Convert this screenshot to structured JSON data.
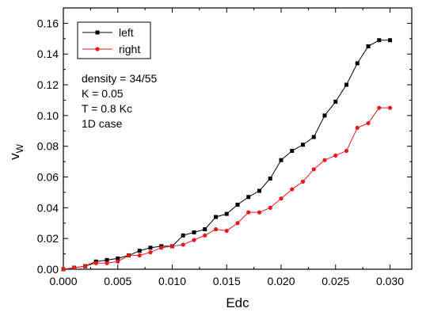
{
  "chart_data": {
    "type": "line",
    "title": "",
    "xlabel": "Edc",
    "ylabel": "v",
    "ylabel_subscript": "W",
    "xlim": [
      0.0,
      0.032
    ],
    "ylim": [
      0.0,
      0.17
    ],
    "xticks": [
      0.0,
      0.005,
      0.01,
      0.015,
      0.02,
      0.025,
      0.03
    ],
    "xtick_labels": [
      "0.000",
      "0.005",
      "0.010",
      "0.015",
      "0.020",
      "0.025",
      "0.030"
    ],
    "yticks": [
      0.0,
      0.02,
      0.04,
      0.06,
      0.08,
      0.1,
      0.12,
      0.14,
      0.16
    ],
    "ytick_labels": [
      "0.00",
      "0.02",
      "0.04",
      "0.06",
      "0.08",
      "0.10",
      "0.12",
      "0.14",
      "0.16"
    ],
    "grid": false,
    "legend_position": "top-left",
    "annotations": [
      "density = 34/55",
      "K = 0.05",
      "T = 0.8 Kc",
      "1D case"
    ],
    "series": [
      {
        "name": "left",
        "color": "#000000",
        "marker": "square",
        "x": [
          0.0,
          0.001,
          0.002,
          0.003,
          0.004,
          0.005,
          0.006,
          0.007,
          0.008,
          0.009,
          0.01,
          0.011,
          0.012,
          0.013,
          0.014,
          0.015,
          0.016,
          0.017,
          0.018,
          0.019,
          0.02,
          0.021,
          0.022,
          0.023,
          0.024,
          0.025,
          0.026,
          0.027,
          0.028,
          0.029,
          0.03
        ],
        "values": [
          0.0,
          0.001,
          0.002,
          0.005,
          0.006,
          0.007,
          0.009,
          0.012,
          0.014,
          0.015,
          0.015,
          0.022,
          0.024,
          0.026,
          0.034,
          0.036,
          0.042,
          0.047,
          0.051,
          0.059,
          0.071,
          0.077,
          0.081,
          0.086,
          0.1,
          0.109,
          0.12,
          0.134,
          0.145,
          0.149,
          0.149
        ]
      },
      {
        "name": "right",
        "color": "#e8191b",
        "marker": "circle",
        "x": [
          0.0,
          0.001,
          0.002,
          0.003,
          0.004,
          0.005,
          0.006,
          0.007,
          0.008,
          0.009,
          0.01,
          0.011,
          0.012,
          0.013,
          0.014,
          0.015,
          0.016,
          0.017,
          0.018,
          0.019,
          0.02,
          0.021,
          0.022,
          0.023,
          0.024,
          0.025,
          0.026,
          0.027,
          0.028,
          0.029,
          0.03
        ],
        "values": [
          0.0,
          0.001,
          0.002,
          0.004,
          0.004,
          0.005,
          0.009,
          0.009,
          0.011,
          0.014,
          0.015,
          0.016,
          0.019,
          0.022,
          0.026,
          0.025,
          0.03,
          0.037,
          0.037,
          0.04,
          0.046,
          0.052,
          0.057,
          0.065,
          0.071,
          0.074,
          0.077,
          0.092,
          0.095,
          0.105,
          0.105
        ]
      }
    ]
  }
}
